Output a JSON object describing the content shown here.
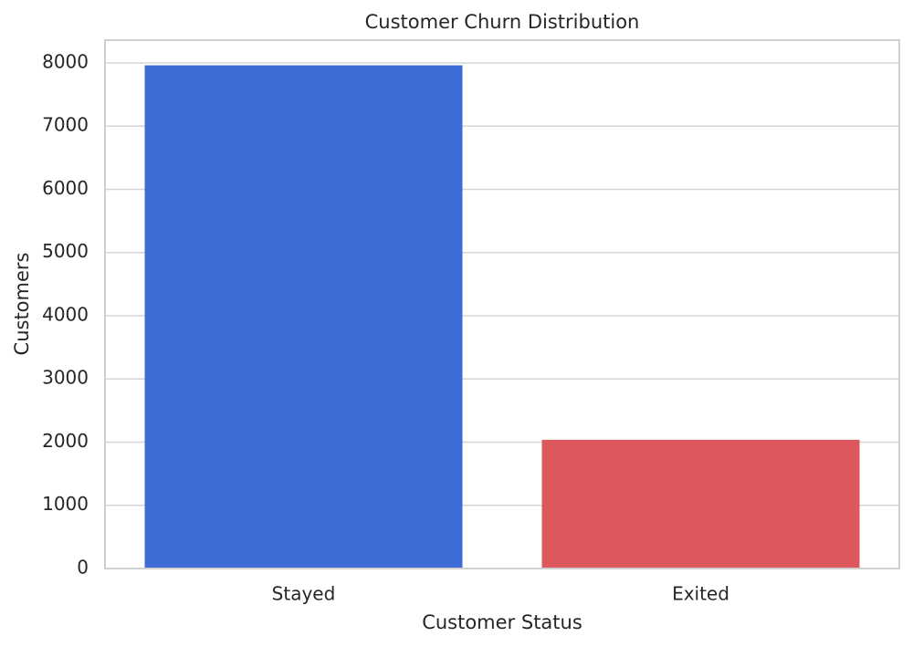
{
  "chart_data": {
    "type": "bar",
    "title": "Customer Churn Distribution",
    "x_label": "Customer Status",
    "y_label": "Customers",
    "categories": [
      "Stayed",
      "Exited"
    ],
    "values": [
      7963,
      2037
    ],
    "colors": [
      "#3d6cd5",
      "#dc585c"
    ],
    "ylim": [
      0,
      8361
    ],
    "yticks": [
      0,
      1000,
      2000,
      3000,
      4000,
      5000,
      6000,
      7000,
      8000
    ],
    "grid": true
  }
}
